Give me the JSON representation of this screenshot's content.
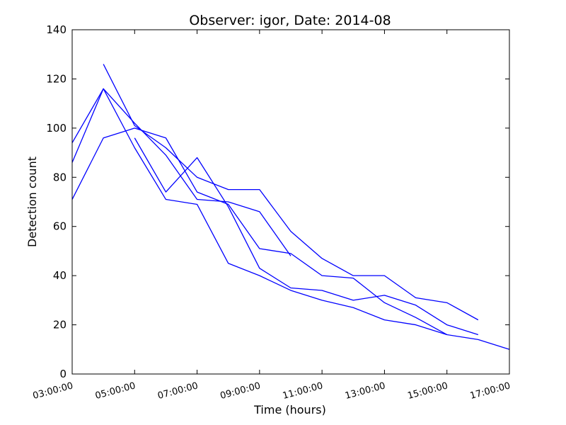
{
  "chart_data": {
    "type": "line",
    "title": "Observer: igor, Date: 2014-08",
    "xlabel": "Time (hours)",
    "ylabel": "Detection count",
    "ylim": [
      0,
      140
    ],
    "xlim_hours": [
      3,
      17
    ],
    "x_tick_labels": [
      "03:00:00",
      "05:00:00",
      "07:00:00",
      "09:00:00",
      "11:00:00",
      "13:00:00",
      "15:00:00",
      "17:00:00"
    ],
    "y_ticks": [
      0,
      20,
      40,
      60,
      80,
      100,
      120,
      140
    ],
    "grid": false,
    "line_color": "#0000ff",
    "series": [
      {
        "x": [
          "03:00:00",
          "04:00:00",
          "05:00:00",
          "06:00:00",
          "07:00:00",
          "08:00:00",
          "09:00:00",
          "10:00:00"
        ],
        "values": [
          94,
          116,
          102,
          89,
          71,
          70,
          66,
          48
        ]
      },
      {
        "x": [
          "04:00:00",
          "05:00:00",
          "06:00:00",
          "07:00:00",
          "08:00:00",
          "09:00:00",
          "10:00:00",
          "11:00:00",
          "12:00:00",
          "13:00:00",
          "14:00:00",
          "15:00:00",
          "16:00:00"
        ],
        "values": [
          126,
          101,
          92,
          80,
          75,
          75,
          58,
          47,
          40,
          40,
          31,
          29,
          22
        ]
      },
      {
        "x": [
          "03:00:00",
          "04:00:00",
          "05:00:00",
          "06:00:00",
          "07:00:00",
          "08:00:00",
          "09:00:00",
          "10:00:00",
          "11:00:00",
          "12:00:00",
          "13:00:00",
          "14:00:00",
          "15:00:00",
          "16:00:00",
          "17:00:00"
        ],
        "values": [
          86,
          116,
          92,
          71,
          69,
          45,
          40,
          34,
          30,
          27,
          22,
          20,
          16,
          14,
          10
        ]
      },
      {
        "x": [
          "03:00:00",
          "04:00:00",
          "05:00:00",
          "06:00:00",
          "07:00:00",
          "08:00:00",
          "09:00:00",
          "10:00:00",
          "11:00:00",
          "12:00:00",
          "13:00:00",
          "14:00:00",
          "15:00:00"
        ],
        "values": [
          71,
          96,
          100,
          96,
          74,
          69,
          51,
          49,
          40,
          39,
          29,
          23,
          16
        ]
      },
      {
        "x": [
          "05:00:00",
          "06:00:00",
          "07:00:00",
          "08:00:00",
          "09:00:00",
          "10:00:00",
          "11:00:00",
          "12:00:00",
          "13:00:00",
          "14:00:00",
          "15:00:00",
          "16:00:00"
        ],
        "values": [
          96,
          74,
          88,
          68,
          43,
          35,
          34,
          30,
          32,
          28,
          20,
          16
        ]
      }
    ]
  }
}
